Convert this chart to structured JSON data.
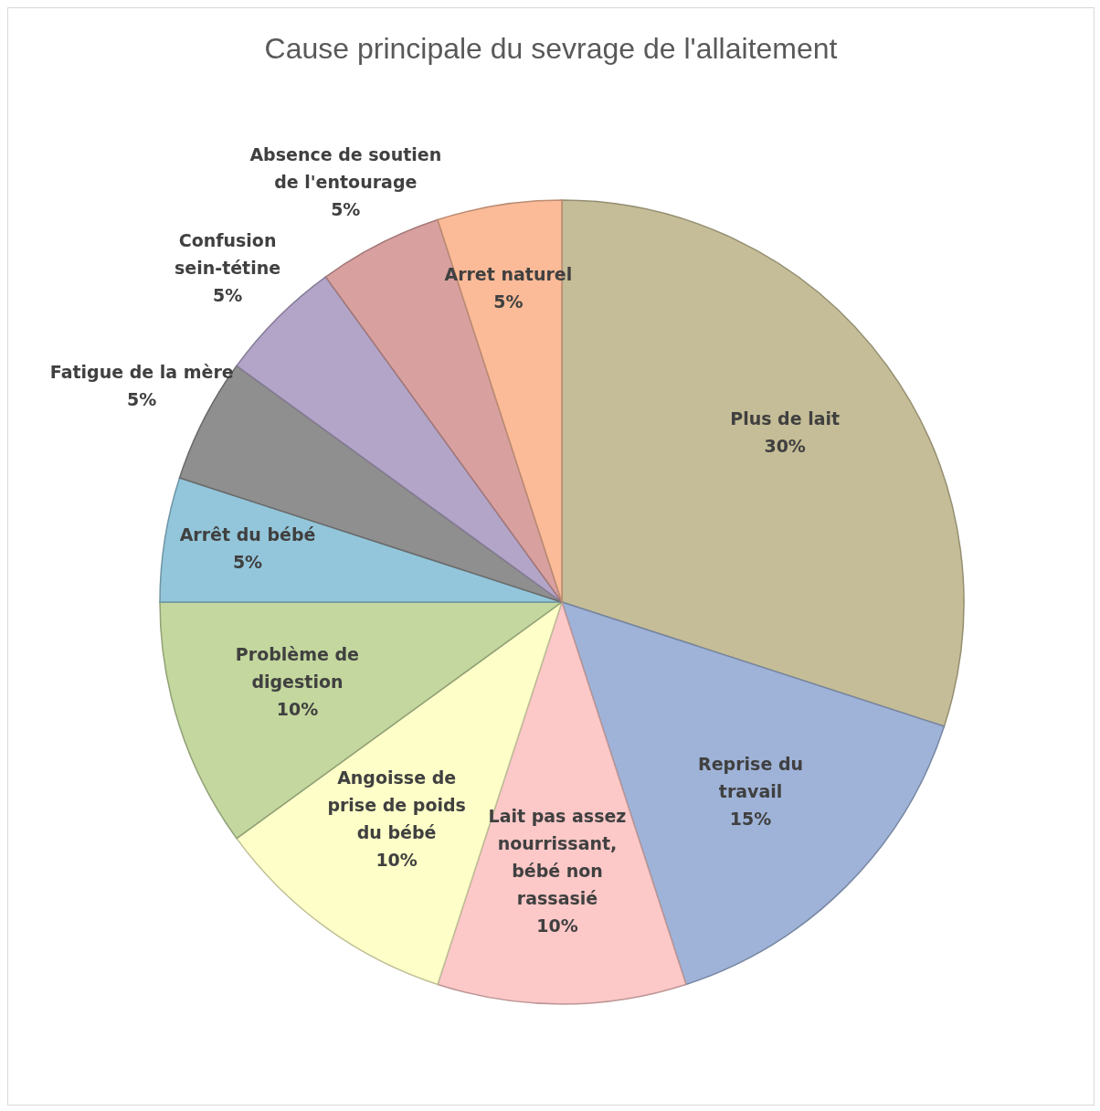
{
  "chart_data": {
    "type": "pie",
    "title": "Cause principale du sevrage de l'allaitement",
    "categories": [
      "Plus de lait",
      "Reprise du travail",
      "Lait pas assez nourrissant, bébé non rassasié",
      "Angoisse de prise de poids du bébé",
      "Problème de digestion",
      "Arrêt du bébé",
      "Fatigue de la mère",
      "Confusion sein-tétine",
      "Absence de soutien de l'entourage",
      "Arret naturel"
    ],
    "values": [
      30,
      15,
      10,
      10,
      10,
      5,
      5,
      5,
      5,
      5
    ],
    "value_labels": [
      "30%",
      "15%",
      "10%",
      "10%",
      "10%",
      "5%",
      "5%",
      "5%",
      "5%",
      "5%"
    ],
    "colors": [
      "#c5bd97",
      "#9fb3d8",
      "#fcc8c8",
      "#fefec8",
      "#c3d79e",
      "#93c6da",
      "#8f8f8f",
      "#b2a5c8",
      "#d9a0a0",
      "#fbbb98"
    ],
    "data_labels": true
  }
}
